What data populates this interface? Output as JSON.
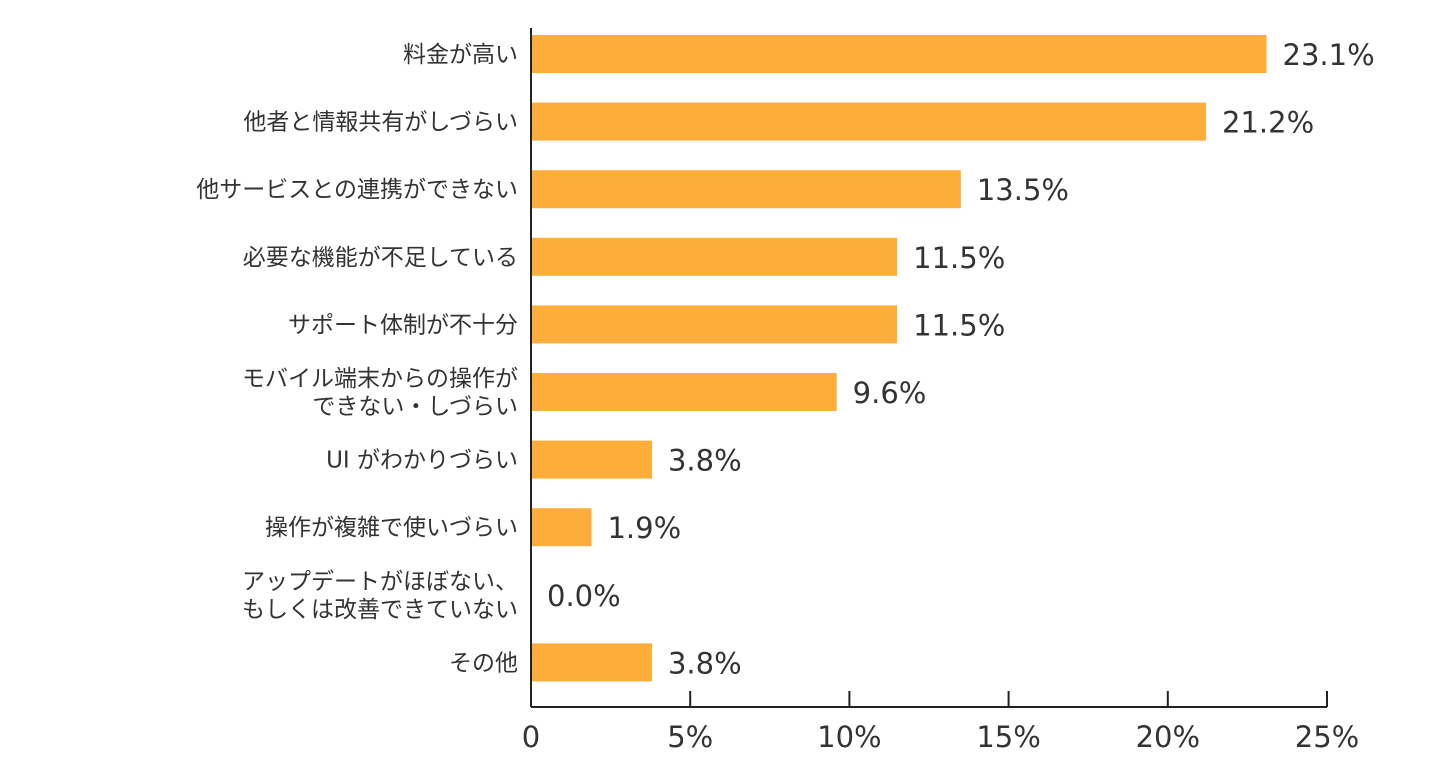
{
  "chart_data": {
    "type": "bar",
    "orientation": "horizontal",
    "title": "",
    "xlabel": "",
    "ylabel": "",
    "categories": [
      [
        "料金が高い"
      ],
      [
        "他者と情報共有がしづらい"
      ],
      [
        "他サービスとの連携ができない"
      ],
      [
        "必要な機能が不足している"
      ],
      [
        "サポート体制が不十分"
      ],
      [
        "モバイル端末からの操作が",
        "できない・しづらい"
      ],
      [
        "UI がわかりづらい"
      ],
      [
        "操作が複雑で使いづらい"
      ],
      [
        "アップデートがほぼない、",
        "もしくは改善できていない"
      ],
      [
        "その他"
      ]
    ],
    "values": [
      23.1,
      21.2,
      13.5,
      11.5,
      11.5,
      9.6,
      3.8,
      1.9,
      0.0,
      3.8
    ],
    "value_labels": [
      "23.1%",
      "21.2%",
      "13.5%",
      "11.5%",
      "11.5%",
      "9.6%",
      "3.8%",
      "1.9%",
      "0.0%",
      "3.8%"
    ],
    "xlim": [
      0,
      25
    ],
    "x_ticks": [
      0,
      5,
      10,
      15,
      20,
      25
    ],
    "x_tick_labels": [
      "0",
      "5%",
      "10%",
      "15%",
      "20%",
      "25%"
    ],
    "grid": false,
    "legend": "none",
    "colors": {
      "bar": "#FDAE3A",
      "axis": "#222222",
      "text": "#333333"
    }
  }
}
